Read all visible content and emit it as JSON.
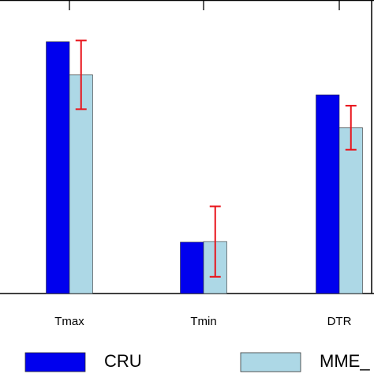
{
  "chart_data": {
    "type": "bar",
    "categories": [
      "Tmax",
      "Tmin",
      "DTR"
    ],
    "series": [
      {
        "name": "CRU",
        "color": "#0000ee",
        "values": [
          8.58,
          1.75,
          6.77
        ]
      },
      {
        "name": "MME_",
        "color": "#add8e6",
        "values": [
          7.45,
          1.77,
          5.65
        ],
        "errors": [
          1.17,
          1.2,
          0.75
        ],
        "error_color": "#e8141b"
      }
    ],
    "ylim": [
      0,
      10
    ]
  }
}
